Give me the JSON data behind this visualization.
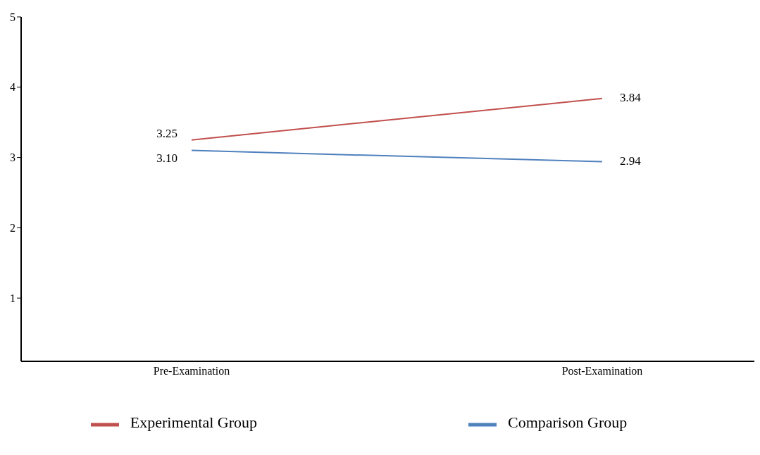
{
  "chart_data": {
    "type": "line",
    "categories": [
      "Pre-Examination",
      "Post-Examination"
    ],
    "series": [
      {
        "name": "Experimental Group",
        "color": "#c0504d",
        "values": [
          3.25,
          3.84
        ],
        "value_labels": [
          "3.25",
          "3.84"
        ]
      },
      {
        "name": "Comparison Group",
        "color": "#4f81bd",
        "values": [
          3.1,
          2.94
        ],
        "value_labels": [
          "3.10",
          "2.94"
        ]
      }
    ],
    "ylim": [
      0.1,
      5
    ],
    "yticks": [
      1,
      2,
      3,
      4,
      5
    ],
    "grid": false,
    "legend": "bottom",
    "marker": "none",
    "line_style": "solid"
  }
}
